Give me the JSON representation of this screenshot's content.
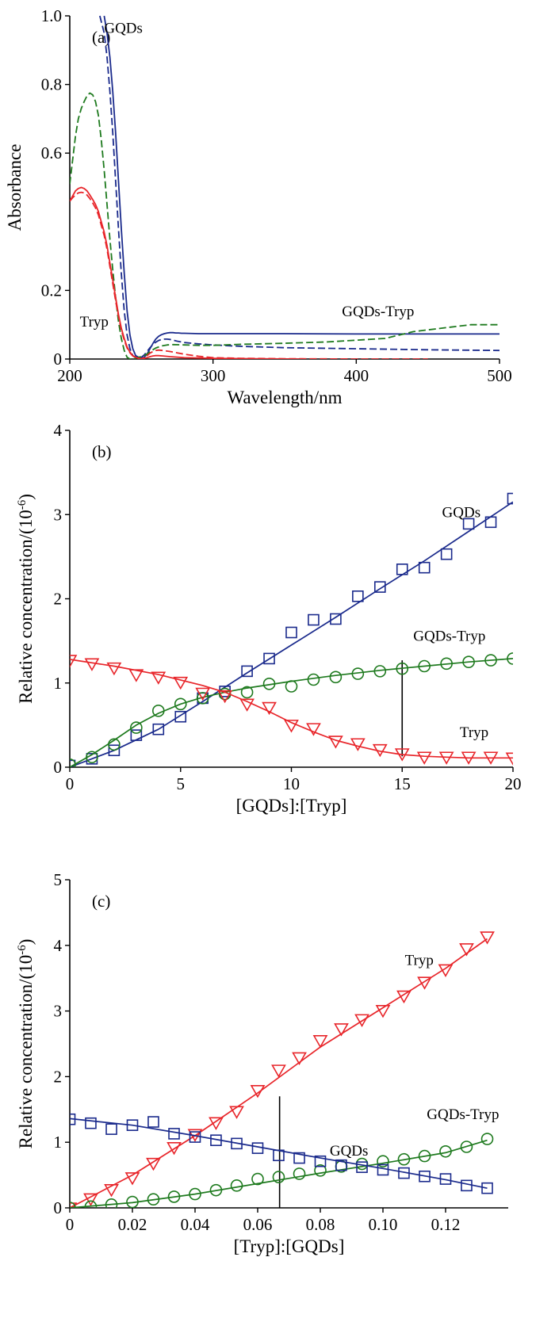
{
  "chart_data": [
    {
      "type": "line",
      "panel_label": "(a)",
      "xlabel": "Wavelength/nm",
      "ylabel": "Absorbance",
      "xlim": [
        200,
        500
      ],
      "ylim": [
        0,
        1.0
      ],
      "xticks": [
        200,
        300,
        400,
        500
      ],
      "yticks": [
        0,
        0.2,
        0.6,
        0.8,
        1.0
      ],
      "ytick_labels": [
        "0",
        "0.2",
        "0.6",
        "0.8",
        "1.0"
      ],
      "annotations": [
        {
          "text": "GQDs",
          "x": 224,
          "y": 0.95
        },
        {
          "text": "Tryp",
          "x": 207,
          "y": 0.095
        },
        {
          "text": "GQDs-Tryp",
          "x": 390,
          "y": 0.125
        }
      ],
      "series": [
        {
          "color": "#1a2a8c",
          "dash": false,
          "x": [
            224,
            226,
            228,
            230,
            232,
            234,
            236,
            238,
            240,
            242,
            244,
            246,
            248,
            250,
            252,
            254,
            256,
            258,
            260,
            262,
            264,
            266,
            268,
            270,
            272,
            274,
            276,
            278,
            280,
            290,
            300,
            320,
            350,
            400,
            450,
            500
          ],
          "y": [
            1.0,
            0.95,
            0.88,
            0.78,
            0.66,
            0.52,
            0.38,
            0.25,
            0.14,
            0.07,
            0.03,
            0.01,
            0.005,
            0.002,
            0.005,
            0.015,
            0.03,
            0.045,
            0.058,
            0.066,
            0.071,
            0.074,
            0.076,
            0.077,
            0.077,
            0.076,
            0.076,
            0.075,
            0.075,
            0.074,
            0.074,
            0.074,
            0.074,
            0.073,
            0.073,
            0.073
          ]
        },
        {
          "color": "#1a2a8c",
          "dash": true,
          "x": [
            221,
            224,
            226,
            228,
            230,
            232,
            234,
            236,
            238,
            240,
            242,
            244,
            246,
            248,
            250,
            252,
            254,
            256,
            258,
            260,
            262,
            264,
            266,
            268,
            270,
            272,
            275,
            280,
            290,
            300,
            320,
            350,
            400,
            450,
            500
          ],
          "y": [
            1.0,
            0.95,
            0.88,
            0.78,
            0.66,
            0.52,
            0.38,
            0.25,
            0.14,
            0.07,
            0.03,
            0.01,
            0.005,
            0.002,
            0.005,
            0.012,
            0.022,
            0.033,
            0.042,
            0.049,
            0.054,
            0.057,
            0.058,
            0.058,
            0.057,
            0.055,
            0.052,
            0.048,
            0.044,
            0.041,
            0.037,
            0.033,
            0.03,
            0.027,
            0.025
          ]
        },
        {
          "color": "#1e7a1e",
          "dash": true,
          "x": [
            200,
            202,
            204,
            206,
            208,
            210,
            212,
            214,
            216,
            218,
            220,
            222,
            224,
            226,
            228,
            230,
            232,
            234,
            236,
            238,
            240,
            242,
            244,
            246,
            248,
            250,
            252,
            254,
            256,
            258,
            260,
            264,
            268,
            272,
            280,
            290,
            300,
            320,
            350,
            380,
            400,
            420,
            440,
            460,
            480,
            500
          ],
          "y": [
            0.51,
            0.58,
            0.65,
            0.7,
            0.73,
            0.75,
            0.767,
            0.775,
            0.77,
            0.75,
            0.71,
            0.64,
            0.55,
            0.45,
            0.35,
            0.26,
            0.18,
            0.11,
            0.06,
            0.025,
            0.005,
            0.0,
            0.0,
            0.002,
            0.005,
            0.007,
            0.01,
            0.015,
            0.021,
            0.027,
            0.032,
            0.038,
            0.041,
            0.042,
            0.041,
            0.04,
            0.04,
            0.043,
            0.046,
            0.05,
            0.055,
            0.06,
            0.08,
            0.09,
            0.1,
            0.1
          ]
        },
        {
          "color": "#e8252a",
          "dash": false,
          "x": [
            200,
            202,
            204,
            206,
            208,
            210,
            212,
            214,
            216,
            218,
            220,
            222,
            224,
            226,
            228,
            230,
            232,
            234,
            236,
            238,
            240,
            242,
            244,
            246,
            248,
            250,
            252,
            254,
            256,
            258,
            260,
            262,
            265,
            270,
            280,
            300,
            330,
            360
          ],
          "y": [
            0.46,
            0.475,
            0.49,
            0.497,
            0.5,
            0.497,
            0.49,
            0.478,
            0.465,
            0.45,
            0.43,
            0.4,
            0.37,
            0.33,
            0.28,
            0.23,
            0.18,
            0.13,
            0.09,
            0.06,
            0.035,
            0.02,
            0.01,
            0.005,
            0.002,
            0.001,
            0.002,
            0.004,
            0.007,
            0.009,
            0.01,
            0.01,
            0.009,
            0.007,
            0.004,
            0.002,
            0.001,
            0.0
          ]
        },
        {
          "color": "#e8252a",
          "dash": true,
          "x": [
            200,
            202,
            204,
            206,
            208,
            210,
            212,
            214,
            216,
            218,
            220,
            222,
            224,
            226,
            228,
            230,
            232,
            234,
            236,
            238,
            240,
            242,
            244,
            246,
            248,
            250,
            252,
            254,
            256,
            258,
            260,
            262,
            265,
            270,
            275,
            280,
            290,
            300,
            320,
            350,
            400,
            450
          ],
          "y": [
            0.46,
            0.47,
            0.478,
            0.484,
            0.486,
            0.484,
            0.478,
            0.468,
            0.455,
            0.44,
            0.42,
            0.39,
            0.36,
            0.32,
            0.27,
            0.22,
            0.17,
            0.125,
            0.085,
            0.055,
            0.032,
            0.018,
            0.009,
            0.004,
            0.002,
            0.001,
            0.004,
            0.01,
            0.017,
            0.022,
            0.025,
            0.026,
            0.025,
            0.022,
            0.018,
            0.014,
            0.008,
            0.004,
            0.002,
            0.001,
            0.0,
            0.0
          ]
        }
      ]
    },
    {
      "type": "line",
      "panel_label": "(b)",
      "xlabel": "[GQDs]:[Tryp]",
      "ylabel": "Relative concentration/(10",
      "ylabel_sup": "-6",
      "ylabel_end": ")",
      "xlim": [
        0,
        20
      ],
      "ylim": [
        0,
        4
      ],
      "xticks": [
        0,
        5,
        10,
        15,
        20
      ],
      "yticks": [
        0,
        1,
        2,
        3,
        4
      ],
      "vline_x": 15,
      "vline_ylim": [
        0.13,
        1.27
      ],
      "annotations": [
        {
          "text": "GQDs",
          "x": 16.8,
          "y": 2.97
        },
        {
          "text": "GQDs-Tryp",
          "x": 15.5,
          "y": 1.5
        },
        {
          "text": "Tryp",
          "x": 17.6,
          "y": 0.36
        }
      ],
      "series": [
        {
          "marker": "square",
          "color": "#1a2a8c",
          "x": [
            0,
            1,
            2,
            3,
            4,
            5,
            6,
            7,
            8,
            9,
            10,
            11,
            12,
            13,
            14,
            15,
            16,
            17,
            18,
            19,
            20
          ],
          "y": [
            0.02,
            0.1,
            0.2,
            0.38,
            0.45,
            0.6,
            0.82,
            0.9,
            1.14,
            1.29,
            1.6,
            1.75,
            1.76,
            2.03,
            2.14,
            2.35,
            2.37,
            2.53,
            2.89,
            2.91,
            3.19
          ],
          "fit_x": [
            0,
            2,
            4,
            6,
            8,
            10,
            12,
            14,
            16,
            18,
            20
          ],
          "fit_y": [
            0.0,
            0.2,
            0.45,
            0.78,
            1.12,
            1.45,
            1.78,
            2.12,
            2.45,
            2.8,
            3.15
          ]
        },
        {
          "marker": "circle",
          "color": "#1e7a1e",
          "x": [
            0,
            1,
            2,
            3,
            4,
            5,
            6,
            7,
            8,
            9,
            10,
            11,
            12,
            13,
            14,
            15,
            16,
            17,
            18,
            19,
            20
          ],
          "y": [
            0.03,
            0.12,
            0.27,
            0.47,
            0.67,
            0.75,
            0.82,
            0.87,
            0.89,
            0.99,
            0.96,
            1.04,
            1.07,
            1.11,
            1.14,
            1.17,
            1.2,
            1.23,
            1.25,
            1.27,
            1.29
          ],
          "fit_x": [
            0,
            1,
            2,
            3,
            4,
            5,
            6,
            7,
            8,
            10,
            12,
            14,
            16,
            18,
            20
          ],
          "fit_y": [
            0.0,
            0.15,
            0.32,
            0.5,
            0.64,
            0.75,
            0.83,
            0.89,
            0.94,
            1.02,
            1.09,
            1.15,
            1.2,
            1.25,
            1.29
          ]
        },
        {
          "marker": "triangle-down",
          "color": "#e8252a",
          "x": [
            0,
            1,
            2,
            3,
            4,
            5,
            6,
            7,
            8,
            9,
            10,
            11,
            12,
            13,
            14,
            15,
            16,
            17,
            18,
            19,
            20
          ],
          "y": [
            1.27,
            1.23,
            1.18,
            1.1,
            1.07,
            1.01,
            0.88,
            0.85,
            0.75,
            0.71,
            0.5,
            0.46,
            0.31,
            0.28,
            0.21,
            0.16,
            0.12,
            0.12,
            0.12,
            0.12,
            0.11
          ],
          "fit_x": [
            0,
            2,
            4,
            6,
            7,
            8,
            9,
            10,
            11,
            12,
            13,
            14,
            15,
            16,
            17,
            18,
            20
          ],
          "fit_y": [
            1.28,
            1.2,
            1.1,
            0.97,
            0.89,
            0.78,
            0.66,
            0.53,
            0.42,
            0.32,
            0.25,
            0.19,
            0.15,
            0.13,
            0.12,
            0.11,
            0.11
          ]
        }
      ]
    },
    {
      "type": "line",
      "panel_label": "(c)",
      "xlabel": "[Tryp]:[GQDs]",
      "ylabel": "Relative concentration/(10",
      "ylabel_sup": "-6",
      "ylabel_end": ")",
      "xlim": [
        0,
        0.14
      ],
      "ylim": [
        0,
        5
      ],
      "xticks": [
        0,
        0.02,
        0.04,
        0.06,
        0.08,
        0.1,
        0.12
      ],
      "xtick_labels": [
        "0",
        "0.02",
        "0.04",
        "0.06",
        "0.08",
        "0.10",
        "0.12"
      ],
      "yticks": [
        0,
        1,
        2,
        3,
        4,
        5
      ],
      "vline_x": 0.067,
      "vline_ylim": [
        0,
        1.7
      ],
      "annotations": [
        {
          "text": "Tryp",
          "x": 0.107,
          "y": 3.7
        },
        {
          "text": "GQDs-Tryp",
          "x": 0.114,
          "y": 1.35
        },
        {
          "text": "GQDs",
          "x": 0.083,
          "y": 0.8
        }
      ],
      "series": [
        {
          "marker": "triangle-down",
          "color": "#e8252a",
          "x": [
            0,
            0.0067,
            0.0133,
            0.02,
            0.0267,
            0.0333,
            0.04,
            0.0467,
            0.0533,
            0.06,
            0.0667,
            0.0733,
            0.08,
            0.0867,
            0.0933,
            0.1,
            0.1067,
            0.1133,
            0.12,
            0.1267,
            0.1333
          ],
          "y": [
            0,
            0.14,
            0.28,
            0.46,
            0.68,
            0.92,
            1.12,
            1.3,
            1.47,
            1.79,
            2.1,
            2.29,
            2.55,
            2.73,
            2.87,
            3.01,
            3.23,
            3.44,
            3.63,
            3.95,
            4.13
          ],
          "fit_x": [
            0,
            0.02,
            0.04,
            0.06,
            0.08,
            0.1,
            0.12,
            0.1333
          ],
          "fit_y": [
            0.0,
            0.5,
            1.1,
            1.75,
            2.45,
            3.05,
            3.65,
            4.1
          ]
        },
        {
          "marker": "circle",
          "color": "#1e7a1e",
          "x": [
            0,
            0.0067,
            0.0133,
            0.02,
            0.0267,
            0.0333,
            0.04,
            0.0467,
            0.0533,
            0.06,
            0.0667,
            0.0733,
            0.08,
            0.0867,
            0.0933,
            0.1,
            0.1067,
            0.1133,
            0.12,
            0.1267,
            0.1333
          ],
          "y": [
            0,
            0.02,
            0.05,
            0.09,
            0.13,
            0.17,
            0.21,
            0.27,
            0.34,
            0.44,
            0.47,
            0.52,
            0.57,
            0.63,
            0.67,
            0.71,
            0.74,
            0.79,
            0.86,
            0.93,
            1.05
          ],
          "fit_x": [
            0,
            0.02,
            0.04,
            0.06,
            0.08,
            0.1,
            0.12,
            0.1333
          ],
          "fit_y": [
            0.0,
            0.08,
            0.21,
            0.37,
            0.53,
            0.68,
            0.84,
            1.03
          ]
        },
        {
          "marker": "square",
          "color": "#1a2a8c",
          "x": [
            0,
            0.0067,
            0.0133,
            0.02,
            0.0267,
            0.0333,
            0.04,
            0.0467,
            0.0533,
            0.06,
            0.0667,
            0.0733,
            0.08,
            0.0867,
            0.0933,
            0.1,
            0.1067,
            0.1133,
            0.12,
            0.1267,
            0.1333
          ],
          "y": [
            1.35,
            1.29,
            1.2,
            1.26,
            1.31,
            1.13,
            1.08,
            1.03,
            0.98,
            0.91,
            0.8,
            0.76,
            0.71,
            0.65,
            0.62,
            0.58,
            0.53,
            0.48,
            0.44,
            0.34,
            0.3
          ],
          "fit_x": [
            0,
            0.02,
            0.04,
            0.06,
            0.08,
            0.1,
            0.12,
            0.1333
          ],
          "fit_y": [
            1.36,
            1.26,
            1.1,
            0.93,
            0.76,
            0.6,
            0.43,
            0.3
          ]
        }
      ]
    }
  ]
}
